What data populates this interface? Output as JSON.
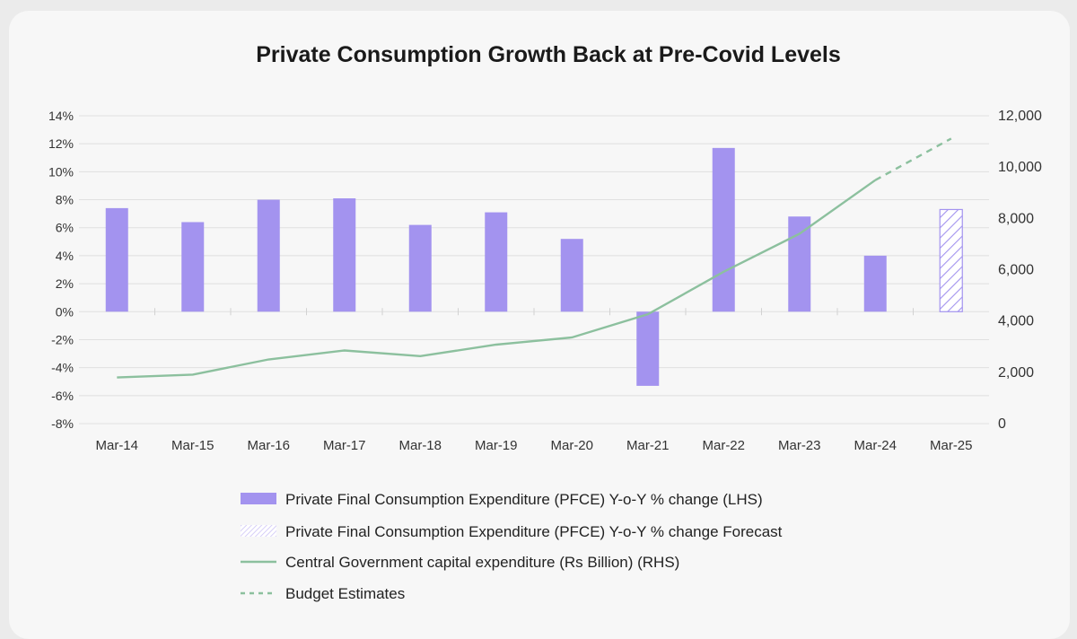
{
  "chart_data": {
    "type": "bar",
    "title": "Private Consumption Growth Back at Pre-Covid Levels",
    "categories": [
      "Mar-14",
      "Mar-15",
      "Mar-16",
      "Mar-17",
      "Mar-18",
      "Mar-19",
      "Mar-20",
      "Mar-21",
      "Mar-22",
      "Mar-23",
      "Mar-24",
      "Mar-25"
    ],
    "y_left": {
      "ticks": [
        "14%",
        "12%",
        "10%",
        "8%",
        "6%",
        "4%",
        "2%",
        "0%",
        "-2%",
        "-4%",
        "-6%",
        "-8%"
      ],
      "ylim": [
        -8,
        14
      ]
    },
    "y_right": {
      "ticks": [
        "12,000",
        "10,000",
        "8,000",
        "6,000",
        "4,000",
        "2,000",
        "0"
      ],
      "ylim": [
        0,
        12000
      ]
    },
    "grid": true,
    "legend_position": "bottom",
    "series": [
      {
        "name": "Private Final Consumption Expenditure (PFCE) Y-o-Y % change (LHS)",
        "kind": "bar",
        "axis": "left",
        "color": "#a393ef",
        "values": [
          7.4,
          6.4,
          8.0,
          8.1,
          6.2,
          7.1,
          5.2,
          -5.3,
          11.7,
          6.8,
          4.0,
          null
        ]
      },
      {
        "name": "Private Final Consumption Expenditure (PFCE) Y-o-Y % change Forecast",
        "kind": "bar-hatched",
        "axis": "left",
        "color": "#a393ef",
        "values": [
          null,
          null,
          null,
          null,
          null,
          null,
          null,
          null,
          null,
          null,
          null,
          7.3
        ]
      },
      {
        "name": "Central Government capital expenditure (Rs Billion) (RHS)",
        "kind": "line",
        "axis": "right",
        "color": "#8cc09e",
        "values": [
          1800,
          1910,
          2500,
          2850,
          2630,
          3080,
          3360,
          4260,
          5920,
          7400,
          9490,
          null
        ]
      },
      {
        "name": "Budget Estimates",
        "kind": "line-dashed",
        "axis": "right",
        "color": "#8cc09e",
        "values": [
          null,
          null,
          null,
          null,
          null,
          null,
          null,
          null,
          null,
          null,
          9490,
          11110
        ]
      }
    ]
  }
}
